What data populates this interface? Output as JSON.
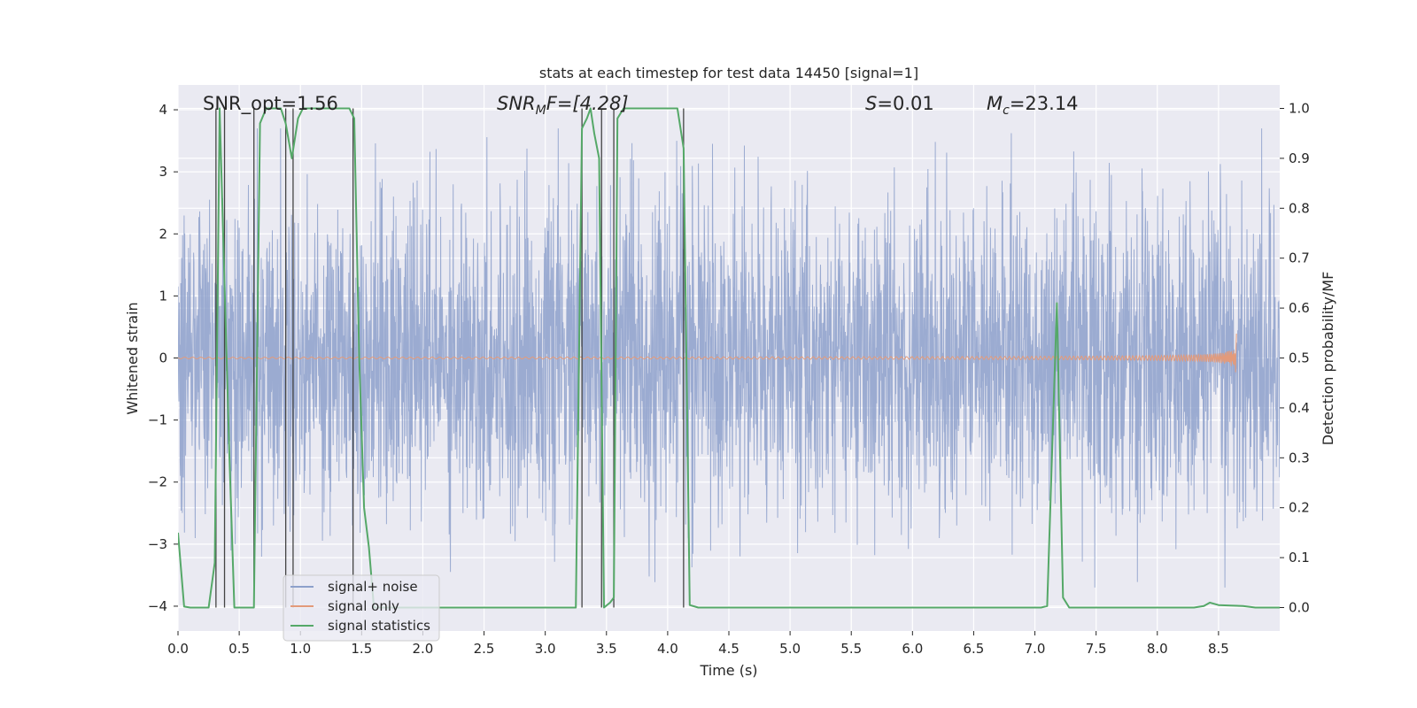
{
  "chart_data": {
    "type": "line",
    "title": "stats at each timestep for test data 14450 [signal=1]",
    "xlabel": "Time (s)",
    "ylabel_left": "Whitened strain",
    "ylabel_right": "Detection probability/MF",
    "xlim": [
      0.0,
      9.0
    ],
    "ylim_left": [
      -4.4,
      4.4
    ],
    "ylim_right": [
      -0.047,
      1.047
    ],
    "xticks": [
      0.0,
      0.5,
      1.0,
      1.5,
      2.0,
      2.5,
      3.0,
      3.5,
      4.0,
      4.5,
      5.0,
      5.5,
      6.0,
      6.5,
      7.0,
      7.5,
      8.0,
      8.5
    ],
    "xtick_labels": [
      "0.0",
      "0.5",
      "1.0",
      "1.5",
      "2.0",
      "2.5",
      "3.0",
      "3.5",
      "4.0",
      "4.5",
      "5.0",
      "5.5",
      "6.0",
      "6.5",
      "7.0",
      "7.5",
      "8.0",
      "8.5"
    ],
    "yticks_left": [
      4,
      3,
      2,
      1,
      0,
      -1,
      -2,
      -3,
      -4
    ],
    "ytick_labels_left": [
      "4",
      "3",
      "2",
      "1",
      "0",
      "−1",
      "−2",
      "−3",
      "−4"
    ],
    "yticks_right": [
      1.0,
      0.9,
      0.8,
      0.7,
      0.6,
      0.5,
      0.4,
      0.3,
      0.2,
      0.1,
      0.0
    ],
    "ytick_labels_right": [
      "1.0",
      "0.9",
      "0.8",
      "0.7",
      "0.6",
      "0.5",
      "0.4",
      "0.3",
      "0.2",
      "0.1",
      "0.0"
    ],
    "grid": true,
    "legend_position": "lower-left",
    "annotations": {
      "snr_opt": "SNR_opt=1.56",
      "snr_mf": "SNR",
      "snr_mf_sub": "M",
      "snr_mf_rest": "F=[4.28]",
      "s_var": "S",
      "s_rest": "=0.01",
      "mc_var": "M",
      "mc_sub": "c",
      "mc_rest": "=23.14"
    },
    "series": [
      {
        "name": "signal+ noise",
        "color": "#8da0cb",
        "description_hint": "dense noisy whitened strain oscillating mostly between about -2.5 and 2.5 with spikes to about ±3.7",
        "amplitude_typical": 2.0,
        "amplitude_peak": 3.7
      },
      {
        "name": "signal only",
        "color": "#e39a7a",
        "description_hint": "near-zero chirp growing in amplitude toward t≈8.65 s, peak about ±0.4",
        "chirp_end_time": 8.65,
        "chirp_peak_amplitude": 0.4
      },
      {
        "name": "signal statistics",
        "color": "#55a868",
        "x": [
          0.0,
          0.05,
          0.1,
          0.2,
          0.25,
          0.3,
          0.34,
          0.38,
          0.42,
          0.46,
          0.5,
          0.55,
          0.62,
          0.67,
          0.72,
          0.78,
          0.84,
          0.88,
          0.93,
          0.98,
          1.02,
          1.1,
          1.2,
          1.3,
          1.4,
          1.44,
          1.48,
          1.52,
          1.56,
          1.6,
          1.7,
          2.0,
          2.5,
          3.0,
          3.25,
          3.3,
          3.34,
          3.37,
          3.4,
          3.44,
          3.48,
          3.53,
          3.56,
          3.59,
          3.64,
          3.7,
          3.8,
          4.0,
          4.08,
          4.13,
          4.18,
          4.25,
          4.3,
          4.5,
          5.0,
          5.5,
          6.0,
          6.5,
          7.0,
          7.05,
          7.1,
          7.18,
          7.23,
          7.28,
          7.5,
          8.0,
          8.3,
          8.38,
          8.43,
          8.5,
          8.6,
          8.7,
          8.8,
          9.0
        ],
        "values": [
          0.15,
          0.002,
          0.0,
          0.0,
          0.0,
          0.09,
          1.0,
          0.65,
          0.3,
          0.0,
          0.0,
          0.0,
          0.0,
          0.97,
          1.0,
          1.0,
          1.0,
          0.97,
          0.9,
          0.98,
          1.0,
          1.0,
          1.0,
          1.0,
          1.0,
          0.98,
          0.5,
          0.2,
          0.12,
          0.0,
          0.0,
          0.0,
          0.0,
          0.0,
          0.0,
          0.96,
          0.98,
          1.0,
          0.95,
          0.9,
          0.0,
          0.01,
          0.02,
          0.98,
          1.0,
          1.0,
          1.0,
          1.0,
          1.0,
          0.92,
          0.005,
          0.0,
          0.0,
          0.0,
          0.0,
          0.0,
          0.0,
          0.0,
          0.0,
          0.0,
          0.003,
          0.61,
          0.02,
          0.0,
          0.0,
          0.0,
          0.0,
          0.003,
          0.01,
          0.005,
          0.004,
          0.003,
          0.0,
          0.0
        ]
      }
    ],
    "vertical_lines_x": [
      0.31,
      0.38,
      0.62,
      0.88,
      0.94,
      1.43,
      3.3,
      3.46,
      3.56,
      4.13
    ],
    "vertical_line_color": "#444444"
  }
}
